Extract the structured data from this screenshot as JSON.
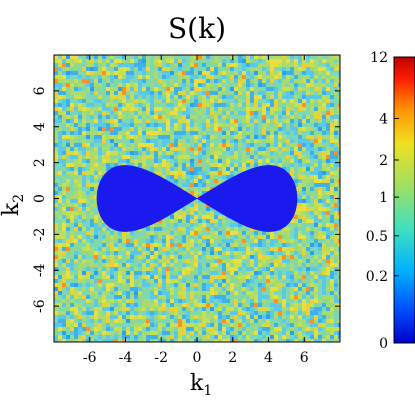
{
  "chart_data": {
    "type": "heatmap",
    "title": "S(k)",
    "xlabel": "k",
    "xlabel_sub": "1",
    "ylabel": "k",
    "ylabel_sub": "2",
    "xlim": [
      -8,
      8
    ],
    "ylim": [
      -8,
      8
    ],
    "xticks": [
      -6,
      -4,
      -2,
      0,
      2,
      4,
      6
    ],
    "yticks": [
      -6,
      -4,
      -2,
      0,
      2,
      4,
      6
    ],
    "xtick_labels": [
      "-6",
      "-4",
      "-2",
      "0",
      "2",
      "4",
      "6"
    ],
    "ytick_labels": [
      "-6",
      "-4",
      "-2",
      "0",
      "2",
      "4",
      "6"
    ],
    "background_level_approx": 1,
    "zero_region": {
      "shape": "figure-eight (lemniscate)",
      "value": 0,
      "lobe_centers": [
        [
          -3.3,
          0
        ],
        [
          3.3,
          0
        ]
      ],
      "k1_extent": [
        -5.6,
        5.6
      ],
      "k2_extent": [
        -2,
        2
      ],
      "pinch_point": [
        0,
        0
      ]
    },
    "colorbar": {
      "scale": "log",
      "ticks": [
        0,
        0.2,
        0.5,
        1,
        2,
        4,
        12
      ],
      "tick_labels": [
        "0",
        "0.2",
        "0.5",
        "1",
        "2",
        "4",
        "12"
      ],
      "colormap": [
        "#0000cc",
        "#0050ff",
        "#00b0ff",
        "#40e0c0",
        "#a0e060",
        "#f0e020",
        "#ff9000",
        "#ff2000",
        "#c00000"
      ]
    }
  }
}
